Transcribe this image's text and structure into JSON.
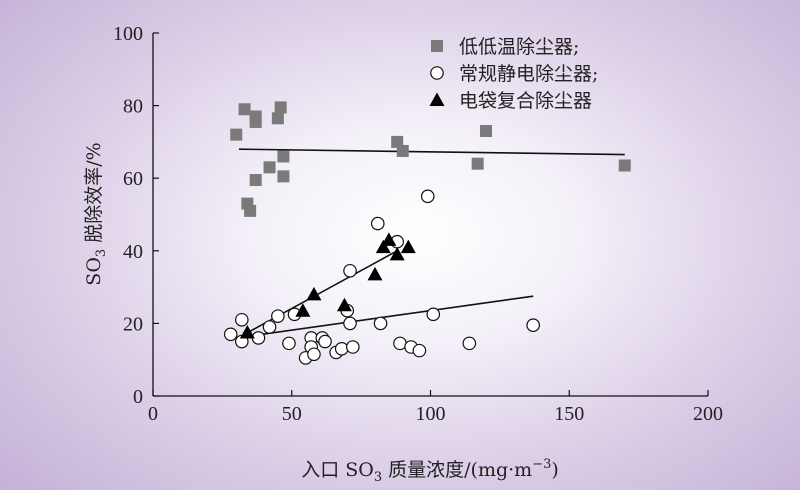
{
  "chart_data": {
    "type": "scatter",
    "xlabel": "入口 SO3 质量浓度/(mg·m−3)",
    "xlabel_parts": {
      "prefix": "入口 SO",
      "sub": "3",
      "middle": " 质量浓度/(mg·m",
      "sup": "−3",
      "suffix": ")"
    },
    "ylabel": "SO3 脱除效率/%",
    "ylabel_parts": {
      "prefix": "SO",
      "sub": "3",
      "suffix": " 脱除效率/%"
    },
    "xlim": [
      0,
      200
    ],
    "ylim": [
      0,
      100
    ],
    "xticks": [
      0,
      50,
      100,
      150,
      200
    ],
    "yticks": [
      0,
      20,
      40,
      60,
      80,
      100
    ],
    "legend_position": "top-right",
    "grid": false,
    "series": [
      {
        "name": "低低温除尘器;",
        "marker": "square",
        "color": "#7a7a7a",
        "points": [
          [
            30,
            72
          ],
          [
            33,
            79
          ],
          [
            34,
            53
          ],
          [
            35,
            51
          ],
          [
            37,
            77
          ],
          [
            37,
            75.5
          ],
          [
            37,
            59.5
          ],
          [
            42,
            63
          ],
          [
            45,
            76.5
          ],
          [
            46,
            79.5
          ],
          [
            47,
            66
          ],
          [
            47,
            60.5
          ],
          [
            88,
            70
          ],
          [
            90,
            67.5
          ],
          [
            117,
            64
          ],
          [
            120,
            73
          ],
          [
            170,
            63.5
          ]
        ],
        "trend": [
          [
            31,
            68
          ],
          [
            170,
            66.5
          ]
        ]
      },
      {
        "name": "常规静电除尘器;",
        "marker": "circle",
        "color": "#ffffff",
        "points": [
          [
            28,
            17
          ],
          [
            32,
            15
          ],
          [
            32,
            21
          ],
          [
            38,
            16
          ],
          [
            42,
            19
          ],
          [
            45,
            22
          ],
          [
            49,
            14.5
          ],
          [
            51,
            22.5
          ],
          [
            55,
            10.5
          ],
          [
            57,
            16
          ],
          [
            57,
            13.5
          ],
          [
            58,
            11.5
          ],
          [
            61,
            16
          ],
          [
            62,
            15
          ],
          [
            66,
            12
          ],
          [
            68,
            13
          ],
          [
            70,
            23.5
          ],
          [
            71,
            34.5
          ],
          [
            71,
            20
          ],
          [
            72,
            13.5
          ],
          [
            81,
            47.5
          ],
          [
            82,
            20
          ],
          [
            88,
            42.5
          ],
          [
            89,
            14.5
          ],
          [
            93,
            13.5
          ],
          [
            96,
            12.5
          ],
          [
            99,
            55
          ],
          [
            101,
            22.5
          ],
          [
            114,
            14.5
          ],
          [
            137,
            19.5
          ]
        ],
        "trend": [
          [
            30,
            16
          ],
          [
            137,
            27.5
          ]
        ]
      },
      {
        "name": "电袋复合除尘器",
        "marker": "triangle",
        "color": "#000000",
        "points": [
          [
            34,
            17.5
          ],
          [
            54,
            23.5
          ],
          [
            58,
            28
          ],
          [
            69,
            25
          ],
          [
            80,
            33.5
          ],
          [
            83,
            41
          ],
          [
            85,
            43
          ],
          [
            88,
            39
          ],
          [
            92,
            41
          ]
        ],
        "trend": [
          [
            33,
            17
          ],
          [
            88,
            40
          ]
        ]
      }
    ]
  }
}
